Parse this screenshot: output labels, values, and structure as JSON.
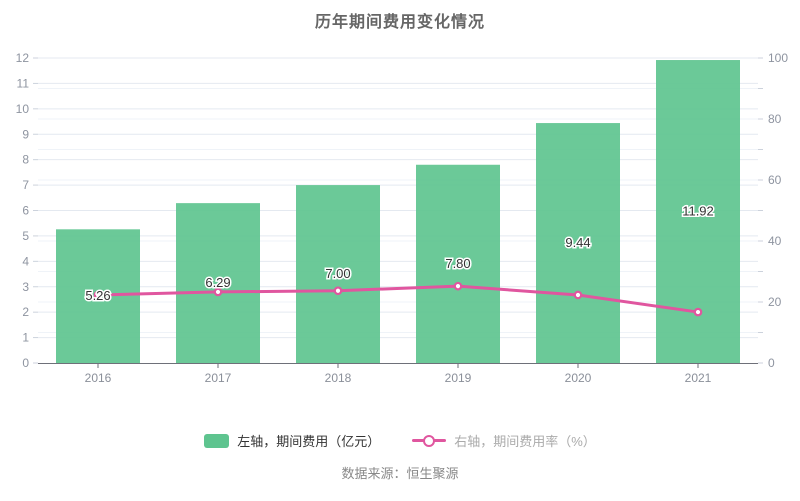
{
  "title": "历年期间费用变化情况",
  "chart_data": {
    "type": "bar",
    "title": "历年期间费用变化情况",
    "categories": [
      "2016",
      "2017",
      "2018",
      "2019",
      "2020",
      "2021"
    ],
    "series": [
      {
        "name": "左轴，期间费用（亿元）",
        "type": "bar",
        "axis": "left",
        "values": [
          5.26,
          6.29,
          7.0,
          7.8,
          9.44,
          11.92
        ],
        "value_labels": [
          "5.26",
          "6.29",
          "7.00",
          "7.80",
          "9.44",
          "11.92"
        ],
        "color": "#5EC48F"
      },
      {
        "name": "右轴，期间费用率（%）",
        "type": "line",
        "axis": "right",
        "values": [
          22.3,
          23.3,
          23.7,
          25.2,
          22.3,
          16.7
        ],
        "color": "#E0569F"
      }
    ],
    "left_axis": {
      "min": 0,
      "max": 12,
      "interval": 1
    },
    "right_axis": {
      "min": 0,
      "max": 100,
      "label_interval": 20,
      "grid_interval": 10
    },
    "grid": true,
    "legend_position": "bottom"
  },
  "legend": {
    "bar_label": "左轴，期间费用（亿元）",
    "line_label": "右轴，期间费用率（%）"
  },
  "footer": {
    "source": "数据来源：恒生聚源"
  },
  "colors": {
    "bar": "#5EC48F",
    "line": "#E0569F",
    "grid_major": "#E4E9F0",
    "grid_minor": "#EFF3F8",
    "axis_line": "#6E7079"
  }
}
